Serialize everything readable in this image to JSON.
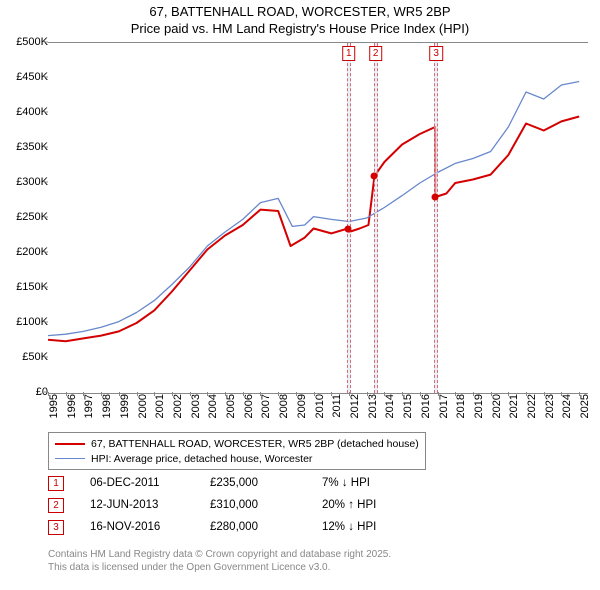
{
  "title_line1": "67, BATTENHALL ROAD, WORCESTER, WR5 2BP",
  "title_line2": "Price paid vs. HM Land Registry's House Price Index (HPI)",
  "chart": {
    "type": "line",
    "x_start": 1995,
    "x_end": 2025.5,
    "x_ticks": [
      1995,
      1996,
      1997,
      1998,
      1999,
      2000,
      2001,
      2002,
      2003,
      2004,
      2005,
      2006,
      2007,
      2008,
      2009,
      2010,
      2011,
      2012,
      2013,
      2014,
      2015,
      2016,
      2017,
      2018,
      2019,
      2020,
      2021,
      2022,
      2023,
      2024,
      2025
    ],
    "y_min": 0,
    "y_max": 500000,
    "y_ticks": [
      0,
      50000,
      100000,
      150000,
      200000,
      250000,
      300000,
      350000,
      400000,
      450000,
      500000
    ],
    "y_tick_labels": [
      "£0",
      "£50K",
      "£100K",
      "£150K",
      "£200K",
      "£250K",
      "£300K",
      "£350K",
      "£400K",
      "£450K",
      "£500K"
    ],
    "background_color": "#ffffff",
    "grid_color": "#888888",
    "series": [
      {
        "name": "property",
        "label": "67, BATTENHALL ROAD, WORCESTER, WR5 2BP (detached house)",
        "color": "#d40000",
        "stroke_width": 2,
        "data": [
          [
            1995,
            76000
          ],
          [
            1996,
            74000
          ],
          [
            1997,
            78000
          ],
          [
            1998,
            82000
          ],
          [
            1999,
            88000
          ],
          [
            2000,
            100000
          ],
          [
            2001,
            118000
          ],
          [
            2002,
            145000
          ],
          [
            2003,
            175000
          ],
          [
            2004,
            205000
          ],
          [
            2005,
            225000
          ],
          [
            2006,
            240000
          ],
          [
            2007,
            262000
          ],
          [
            2008,
            260000
          ],
          [
            2008.7,
            210000
          ],
          [
            2009.5,
            222000
          ],
          [
            2010,
            235000
          ],
          [
            2011,
            228000
          ],
          [
            2011.93,
            235000
          ],
          [
            2012,
            230000
          ],
          [
            2012.6,
            235000
          ],
          [
            2013.1,
            240000
          ],
          [
            2013.44,
            310000
          ],
          [
            2014,
            330000
          ],
          [
            2015,
            355000
          ],
          [
            2016,
            370000
          ],
          [
            2016.87,
            380000
          ],
          [
            2016.88,
            280000
          ],
          [
            2017.5,
            285000
          ],
          [
            2018,
            300000
          ],
          [
            2019,
            305000
          ],
          [
            2020,
            312000
          ],
          [
            2021,
            340000
          ],
          [
            2022,
            385000
          ],
          [
            2023,
            375000
          ],
          [
            2024,
            388000
          ],
          [
            2025,
            395000
          ]
        ]
      },
      {
        "name": "hpi",
        "label": "HPI: Average price, detached house, Worcester",
        "color": "#6888cc",
        "stroke_width": 1.3,
        "data": [
          [
            1995,
            82000
          ],
          [
            1996,
            84000
          ],
          [
            1997,
            88000
          ],
          [
            1998,
            94000
          ],
          [
            1999,
            102000
          ],
          [
            2000,
            115000
          ],
          [
            2001,
            132000
          ],
          [
            2002,
            155000
          ],
          [
            2003,
            180000
          ],
          [
            2004,
            210000
          ],
          [
            2005,
            230000
          ],
          [
            2006,
            248000
          ],
          [
            2007,
            272000
          ],
          [
            2008,
            278000
          ],
          [
            2008.8,
            238000
          ],
          [
            2009.5,
            240000
          ],
          [
            2010,
            252000
          ],
          [
            2011,
            248000
          ],
          [
            2012,
            245000
          ],
          [
            2013,
            250000
          ],
          [
            2014,
            265000
          ],
          [
            2015,
            282000
          ],
          [
            2016,
            300000
          ],
          [
            2017,
            315000
          ],
          [
            2018,
            328000
          ],
          [
            2019,
            335000
          ],
          [
            2020,
            345000
          ],
          [
            2021,
            380000
          ],
          [
            2022,
            430000
          ],
          [
            2023,
            420000
          ],
          [
            2024,
            440000
          ],
          [
            2025,
            445000
          ]
        ]
      }
    ],
    "marker_bands": [
      {
        "x_start": 2011.88,
        "x_end": 2011.98,
        "label": "1",
        "dot_x": 2011.93,
        "dot_y": 235000,
        "dot_color": "#d40000"
      },
      {
        "x_start": 2013.4,
        "x_end": 2013.5,
        "label": "2",
        "dot_x": 2013.44,
        "dot_y": 310000,
        "dot_color": "#d40000"
      },
      {
        "x_start": 2016.82,
        "x_end": 2016.92,
        "label": "3",
        "dot_x": 2016.87,
        "dot_y": 280000,
        "dot_color": "#d40000"
      }
    ]
  },
  "legend": {
    "rows": [
      {
        "color": "#d40000",
        "label": "67, BATTENHALL ROAD, WORCESTER, WR5 2BP (detached house)",
        "thick": 2
      },
      {
        "color": "#6888cc",
        "label": "HPI: Average price, detached house, Worcester",
        "thick": 1.3
      }
    ]
  },
  "transactions": [
    {
      "idx": "1",
      "date": "06-DEC-2011",
      "price": "£235,000",
      "diff": "7% ↓ HPI"
    },
    {
      "idx": "2",
      "date": "12-JUN-2013",
      "price": "£310,000",
      "diff": "20% ↑ HPI"
    },
    {
      "idx": "3",
      "date": "16-NOV-2016",
      "price": "£280,000",
      "diff": "12% ↓ HPI"
    }
  ],
  "footer_line1": "Contains HM Land Registry data © Crown copyright and database right 2025.",
  "footer_line2": "This data is licensed under the Open Government Licence v3.0."
}
